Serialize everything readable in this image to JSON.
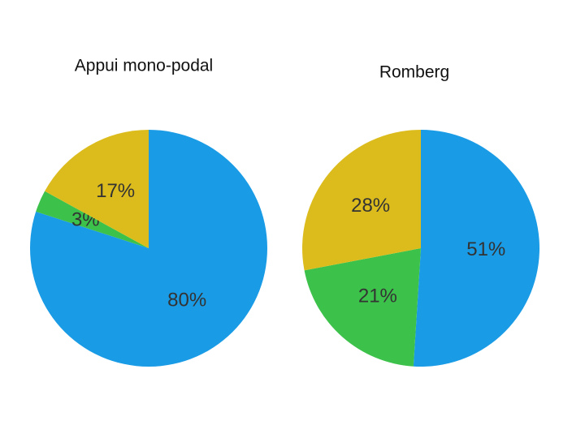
{
  "chart_data": [
    {
      "type": "pie",
      "title": "Appui mono-podal",
      "categories": [
        null,
        null,
        null
      ],
      "values": [
        80,
        3,
        17
      ],
      "value_labels": [
        "80%",
        "3%",
        "17%"
      ],
      "colors": [
        "#1a9be6",
        "#3cc24a",
        "#dcbc1c"
      ]
    },
    {
      "type": "pie",
      "title": "Romberg",
      "categories": [
        null,
        null,
        null
      ],
      "values": [
        51,
        21,
        28
      ],
      "value_labels": [
        "51%",
        "21%",
        "28%"
      ],
      "colors": [
        "#1a9be6",
        "#3cc24a",
        "#dcbc1c"
      ]
    }
  ]
}
